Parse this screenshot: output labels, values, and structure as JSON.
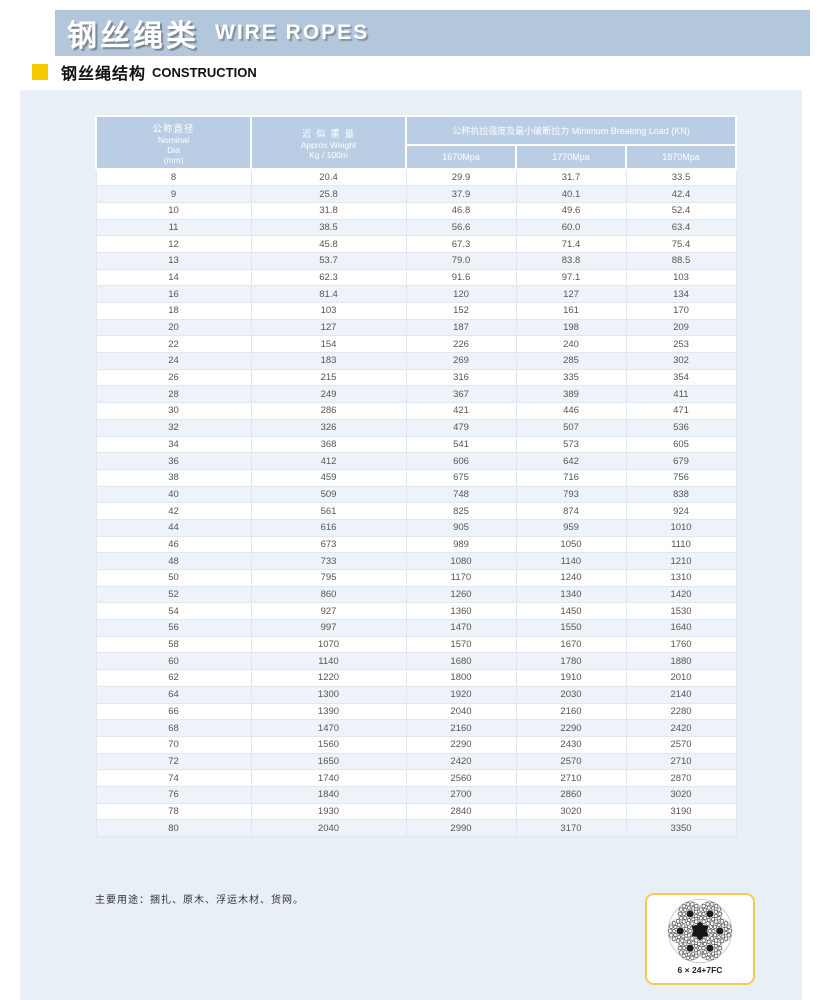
{
  "banner": {
    "title_zh": "钢丝绳类",
    "title_en": "WIRE ROPES"
  },
  "section": {
    "title_zh": "钢丝绳结构",
    "title_en": "CONSTRUCTION"
  },
  "table": {
    "header": {
      "col_dia": {
        "zh": "公称直径",
        "en1": "Nominal",
        "en2": "Dia",
        "unit": "(mm)"
      },
      "col_weight": {
        "zh": "近 似 重 量",
        "en": "Approx Weight",
        "unit": "Kg / 100m"
      },
      "col_breaking_load": "公称抗拉强度及最小破断拉力 Minimum Breaking Load (KN)",
      "grades": [
        "1670Mpa",
        "1770Mpa",
        "1870Mpa"
      ]
    },
    "rows": [
      [
        "8",
        "20.4",
        "29.9",
        "31.7",
        "33.5"
      ],
      [
        "9",
        "25.8",
        "37.9",
        "40.1",
        "42.4"
      ],
      [
        "10",
        "31.8",
        "46.8",
        "49.6",
        "52.4"
      ],
      [
        "11",
        "38.5",
        "56.6",
        "60.0",
        "63.4"
      ],
      [
        "12",
        "45.8",
        "67.3",
        "71.4",
        "75.4"
      ],
      [
        "13",
        "53.7",
        "79.0",
        "83.8",
        "88.5"
      ],
      [
        "14",
        "62.3",
        "91.6",
        "97.1",
        "103"
      ],
      [
        "16",
        "81.4",
        "120",
        "127",
        "134"
      ],
      [
        "18",
        "103",
        "152",
        "161",
        "170"
      ],
      [
        "20",
        "127",
        "187",
        "198",
        "209"
      ],
      [
        "22",
        "154",
        "226",
        "240",
        "253"
      ],
      [
        "24",
        "183",
        "269",
        "285",
        "302"
      ],
      [
        "26",
        "215",
        "316",
        "335",
        "354"
      ],
      [
        "28",
        "249",
        "367",
        "389",
        "411"
      ],
      [
        "30",
        "286",
        "421",
        "446",
        "471"
      ],
      [
        "32",
        "326",
        "479",
        "507",
        "536"
      ],
      [
        "34",
        "368",
        "541",
        "573",
        "605"
      ],
      [
        "36",
        "412",
        "606",
        "642",
        "679"
      ],
      [
        "38",
        "459",
        "675",
        "716",
        "756"
      ],
      [
        "40",
        "509",
        "748",
        "793",
        "838"
      ],
      [
        "42",
        "561",
        "825",
        "874",
        "924"
      ],
      [
        "44",
        "616",
        "905",
        "959",
        "1010"
      ],
      [
        "46",
        "673",
        "989",
        "1050",
        "1110"
      ],
      [
        "48",
        "733",
        "1080",
        "1140",
        "1210"
      ],
      [
        "50",
        "795",
        "1170",
        "1240",
        "1310"
      ],
      [
        "52",
        "860",
        "1260",
        "1340",
        "1420"
      ],
      [
        "54",
        "927",
        "1360",
        "1450",
        "1530"
      ],
      [
        "56",
        "997",
        "1470",
        "1550",
        "1640"
      ],
      [
        "58",
        "1070",
        "1570",
        "1670",
        "1760"
      ],
      [
        "60",
        "1140",
        "1680",
        "1780",
        "1880"
      ],
      [
        "62",
        "1220",
        "1800",
        "1910",
        "2010"
      ],
      [
        "64",
        "1300",
        "1920",
        "2030",
        "2140"
      ],
      [
        "66",
        "1390",
        "2040",
        "2160",
        "2280"
      ],
      [
        "68",
        "1470",
        "2160",
        "2290",
        "2420"
      ],
      [
        "70",
        "1560",
        "2290",
        "2430",
        "2570"
      ],
      [
        "72",
        "1650",
        "2420",
        "2570",
        "2710"
      ],
      [
        "74",
        "1740",
        "2560",
        "2710",
        "2870"
      ],
      [
        "76",
        "1840",
        "2700",
        "2860",
        "3020"
      ],
      [
        "78",
        "1930",
        "2840",
        "3020",
        "3190"
      ],
      [
        "80",
        "2040",
        "2990",
        "3170",
        "3350"
      ]
    ]
  },
  "footer_note": "主要用途：捆扎、原木、浮运木材、货网。",
  "rope_diagram": {
    "label": "6 × 24+7FC"
  },
  "colors": {
    "banner_blue": "#b2c7db",
    "table_header_blue": "#b9cee4",
    "panel_blue": "#e9eff6",
    "row_alt_blue": "#edf3f9",
    "bullet_yellow": "#f6c800",
    "rope_box_border_yellow": "#eecd55"
  }
}
